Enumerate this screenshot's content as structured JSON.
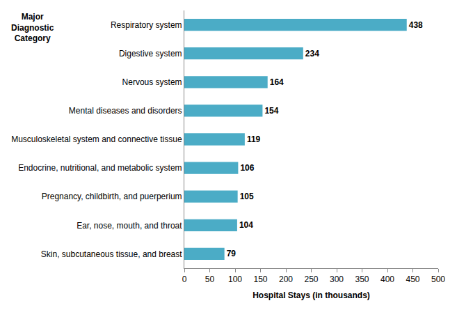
{
  "chart_data": {
    "type": "bar",
    "orientation": "horizontal",
    "y_label": "Major Diagnostic Category",
    "x_label": "Hospital Stays (in thousands)",
    "categories": [
      "Respiratory system",
      "Digestive system",
      "Nervous system",
      "Mental diseases and disorders",
      "Musculoskeletal system and connective tissue",
      "Endocrine, nutritional, and metabolic system",
      "Pregnancy, childbirth, and puerperium",
      "Ear, nose, mouth, and throat",
      "Skin, subcutaneous tissue, and breast"
    ],
    "values": [
      438,
      234,
      164,
      154,
      119,
      106,
      105,
      104,
      79
    ],
    "color": "#4bacc6",
    "data_labels": true,
    "grid": false,
    "xlim": [
      0,
      500
    ],
    "xticks": [
      0,
      50,
      100,
      150,
      200,
      250,
      300,
      350,
      400,
      450,
      500
    ]
  }
}
